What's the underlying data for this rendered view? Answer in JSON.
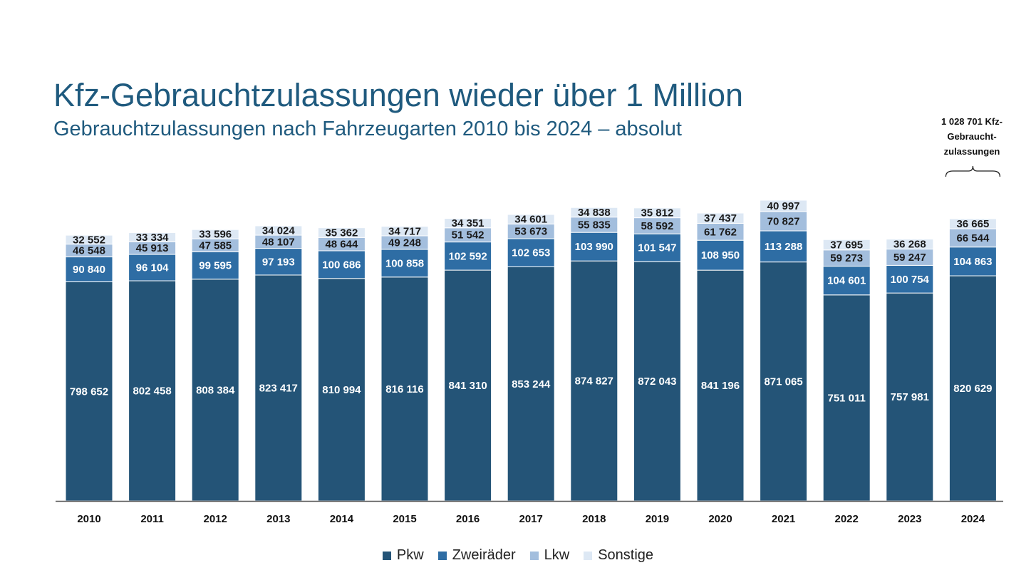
{
  "title": "Kfz-Gebrauchtzulassungen wieder über 1 Million",
  "subtitle": "Gebrauchtzulassungen nach Fahrzeugarten 2010 bis 2024 – absolut",
  "annotation": {
    "line1": "1 028 701 Kfz-",
    "line2": "Gebraucht-",
    "line3": "zulassungen"
  },
  "colors": {
    "Pkw": "#245477",
    "Zweiräder": "#2e6da4",
    "Lkw": "#a3bedd",
    "Sonstige": "#dde8f4"
  },
  "legend": [
    {
      "name": "Pkw",
      "color": "#245477"
    },
    {
      "name": "Zweiräder",
      "color": "#2e6da4"
    },
    {
      "name": "Lkw",
      "color": "#a3bedd"
    },
    {
      "name": "Sonstige",
      "color": "#dde8f4"
    }
  ],
  "chart_data": {
    "type": "bar",
    "stacked": true,
    "title": "Kfz-Gebrauchtzulassungen wieder über 1 Million",
    "subtitle": "Gebrauchtzulassungen nach Fahrzeugarten 2010 bis 2024 – absolut",
    "categories": [
      "2010",
      "2011",
      "2012",
      "2013",
      "2014",
      "2015",
      "2016",
      "2017",
      "2018",
      "2019",
      "2020",
      "2021",
      "2022",
      "2023",
      "2024"
    ],
    "series": [
      {
        "name": "Pkw",
        "values": [
          798652,
          802458,
          808384,
          823417,
          810994,
          816116,
          841310,
          853244,
          874827,
          872043,
          841196,
          871065,
          751011,
          757981,
          820629
        ],
        "labels": [
          "798 652",
          "802 458",
          "808 384",
          "823 417",
          "810 994",
          "816 116",
          "841 310",
          "853 244",
          "874 827",
          "872 043",
          "841 196",
          "871 065",
          "751 011",
          "757 981",
          "820 629"
        ]
      },
      {
        "name": "Zweiräder",
        "values": [
          90840,
          96104,
          99595,
          97193,
          100686,
          100858,
          102592,
          102653,
          103990,
          101547,
          108950,
          113288,
          104601,
          100754,
          104863
        ],
        "labels": [
          "90 840",
          "96 104",
          "99 595",
          "97 193",
          "100 686",
          "100 858",
          "102 592",
          "102 653",
          "103 990",
          "101 547",
          "108 950",
          "113 288",
          "104 601",
          "100 754",
          "104 863"
        ]
      },
      {
        "name": "Lkw",
        "values": [
          46548,
          45913,
          47585,
          48107,
          48644,
          49248,
          51542,
          53673,
          55835,
          58592,
          61762,
          70827,
          59273,
          59247,
          66544
        ],
        "labels": [
          "46 548",
          "45 913",
          "47 585",
          "48 107",
          "48 644",
          "49 248",
          "51 542",
          "53 673",
          "55 835",
          "58 592",
          "61 762",
          "70 827",
          "59 273",
          "59 247",
          "66 544"
        ]
      },
      {
        "name": "Sonstige",
        "values": [
          32552,
          33334,
          33596,
          34024,
          35362,
          34717,
          34351,
          34601,
          34838,
          35812,
          37437,
          40997,
          37695,
          36268,
          36665
        ],
        "labels": [
          "32 552",
          "33 334",
          "33 596",
          "34 024",
          "35 362",
          "34 717",
          "34 351",
          "34 601",
          "34 838",
          "35 812",
          "37 437",
          "40 997",
          "37 695",
          "36 268",
          "36 665"
        ]
      }
    ],
    "total_2024": 1028701,
    "xlabel": "",
    "ylabel": "",
    "ylim": [
      0,
      1150000
    ],
    "grid": false,
    "legend_position": "bottom"
  }
}
